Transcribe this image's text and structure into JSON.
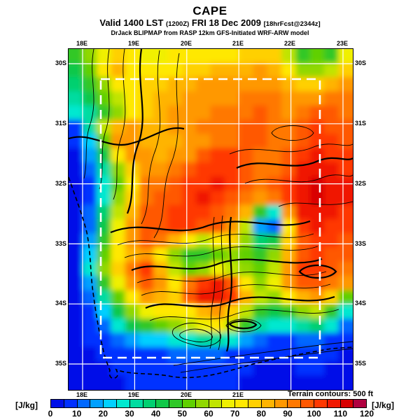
{
  "header": {
    "title": "CAPE",
    "valid_prefix": "Valid 1400 LST",
    "valid_init": "(1200Z)",
    "valid_date": "FRI 18 Dec 2009",
    "valid_fcst": "[18hrFcst@2344z]",
    "model_line": "DrJack BLIPMAP from RASP 12km GFS-Initiated WRF-ARW model"
  },
  "map": {
    "top_lon_labels": [
      "18E",
      "19E",
      "20E",
      "21E",
      "22E",
      "23E"
    ],
    "bottom_lon_labels": [
      "18E",
      "19E",
      "20E",
      "21E"
    ],
    "left_lat_labels": [
      "30S",
      "31S",
      "32S",
      "33S",
      "34S",
      "35S"
    ],
    "right_lat_labels": [
      "30S",
      "31S",
      "32S",
      "33S",
      "34S",
      "35S"
    ],
    "terrain_note": "Terrain contours: 500 ft"
  },
  "colorbar": {
    "units_left": "[J/kg]",
    "units_right": "[J/kg]",
    "tick_labels": [
      "0",
      "10",
      "20",
      "30",
      "40",
      "50",
      "60",
      "70",
      "80",
      "90",
      "100",
      "110",
      "120"
    ]
  },
  "chart_data": {
    "type": "heatmap",
    "title": "CAPE",
    "subtitle": "Valid 1400 LST (1200Z) FRI 18 Dec 2009 [18hrFcst@2344z]",
    "source": "DrJack BLIPMAP from RASP 12km GFS-Initiated WRF-ARW model",
    "units": "J/kg",
    "x_ticks": [
      "18E",
      "19E",
      "20E",
      "21E",
      "22E",
      "23E"
    ],
    "y_ticks": [
      "30S",
      "31S",
      "32S",
      "33S",
      "34S",
      "35S"
    ],
    "lon_range": [
      17.8,
      23.2
    ],
    "lat_range": [
      29.8,
      35.4
    ],
    "annotations": [
      "Terrain contours: 500 ft"
    ],
    "overlays": [
      "white dashed nested-domain box",
      "black terrain contour lines",
      "black dashed coastline",
      "white 1-degree graticule"
    ],
    "colorbar": {
      "min": 0,
      "max": 120,
      "step": 5,
      "tick_step": 10,
      "colors": [
        "#0010e8",
        "#0030ff",
        "#0068ff",
        "#00a0ff",
        "#00d0ff",
        "#00e8d0",
        "#00dca0",
        "#00d070",
        "#10c848",
        "#30c828",
        "#60d000",
        "#90d800",
        "#c0e400",
        "#f0f000",
        "#ffe800",
        "#ffd000",
        "#ffb400",
        "#ff9800",
        "#ff7800",
        "#ff5800",
        "#ff3800",
        "#f01800",
        "#d80000",
        "#b00040"
      ]
    },
    "grid": {
      "cols": 20,
      "rows": 24,
      "comment": "CAPE J/kg estimated on 20x24 lattice, row 0 = north (29.8S), col 0 = west (17.8E)",
      "values": [
        [
          48,
          58,
          68,
          75,
          70,
          68,
          68,
          70,
          70,
          70,
          72,
          72,
          75,
          78,
          78,
          60,
          48,
          50,
          46,
          68
        ],
        [
          42,
          52,
          72,
          80,
          72,
          70,
          70,
          72,
          75,
          78,
          80,
          80,
          82,
          85,
          80,
          72,
          58,
          55,
          62,
          75
        ],
        [
          36,
          45,
          58,
          70,
          72,
          75,
          78,
          80,
          82,
          85,
          85,
          85,
          88,
          88,
          85,
          80,
          76,
          78,
          82,
          85
        ],
        [
          30,
          40,
          50,
          62,
          70,
          76,
          80,
          82,
          85,
          88,
          88,
          88,
          90,
          92,
          90,
          86,
          86,
          88,
          90,
          90
        ],
        [
          26,
          34,
          45,
          58,
          70,
          78,
          82,
          85,
          86,
          88,
          90,
          90,
          92,
          95,
          92,
          88,
          90,
          95,
          95,
          92
        ],
        [
          8,
          30,
          60,
          80,
          85,
          82,
          82,
          85,
          88,
          90,
          90,
          92,
          95,
          95,
          92,
          90,
          95,
          100,
          98,
          95
        ],
        [
          5,
          22,
          50,
          85,
          88,
          82,
          80,
          82,
          85,
          88,
          90,
          92,
          95,
          95,
          92,
          92,
          98,
          102,
          100,
          98
        ],
        [
          4,
          15,
          40,
          70,
          85,
          85,
          82,
          85,
          88,
          95,
          100,
          100,
          95,
          92,
          90,
          95,
          100,
          105,
          102,
          100
        ],
        [
          4,
          10,
          30,
          55,
          75,
          88,
          88,
          90,
          95,
          100,
          102,
          102,
          98,
          92,
          92,
          98,
          105,
          108,
          105,
          102
        ],
        [
          4,
          8,
          25,
          50,
          72,
          90,
          92,
          95,
          100,
          102,
          105,
          100,
          95,
          92,
          95,
          100,
          108,
          110,
          108,
          105
        ],
        [
          4,
          8,
          28,
          55,
          75,
          92,
          95,
          98,
          102,
          105,
          102,
          98,
          92,
          88,
          90,
          100,
          108,
          110,
          108,
          105
        ],
        [
          4,
          10,
          35,
          60,
          80,
          95,
          98,
          100,
          102,
          102,
          98,
          92,
          80,
          45,
          25,
          85,
          105,
          108,
          105,
          102
        ],
        [
          4,
          12,
          40,
          65,
          85,
          95,
          98,
          100,
          100,
          98,
          95,
          88,
          60,
          15,
          12,
          70,
          100,
          105,
          102,
          100
        ],
        [
          4,
          15,
          45,
          70,
          88,
          95,
          90,
          80,
          70,
          60,
          70,
          75,
          55,
          35,
          40,
          75,
          95,
          100,
          100,
          98
        ],
        [
          4,
          20,
          50,
          70,
          80,
          85,
          70,
          55,
          48,
          45,
          50,
          55,
          50,
          45,
          55,
          80,
          95,
          100,
          98,
          95
        ],
        [
          4,
          25,
          55,
          75,
          90,
          100,
          80,
          60,
          50,
          55,
          65,
          60,
          55,
          50,
          60,
          85,
          100,
          102,
          98,
          92
        ],
        [
          4,
          18,
          45,
          65,
          85,
          95,
          85,
          70,
          90,
          100,
          105,
          95,
          70,
          55,
          65,
          85,
          95,
          98,
          92,
          85
        ],
        [
          4,
          10,
          30,
          50,
          70,
          85,
          80,
          75,
          95,
          105,
          108,
          100,
          80,
          60,
          55,
          70,
          80,
          85,
          75,
          50
        ],
        [
          4,
          6,
          20,
          40,
          55,
          65,
          70,
          72,
          70,
          80,
          85,
          75,
          60,
          45,
          40,
          45,
          55,
          60,
          45,
          25
        ],
        [
          4,
          5,
          10,
          25,
          40,
          45,
          50,
          55,
          60,
          65,
          70,
          60,
          45,
          30,
          25,
          28,
          30,
          35,
          25,
          10
        ],
        [
          4,
          5,
          6,
          10,
          18,
          20,
          22,
          25,
          28,
          30,
          32,
          28,
          18,
          10,
          8,
          8,
          10,
          12,
          8,
          6
        ],
        [
          4,
          4,
          5,
          6,
          8,
          8,
          8,
          10,
          10,
          12,
          10,
          8,
          6,
          5,
          5,
          5,
          6,
          6,
          5,
          4
        ],
        [
          4,
          4,
          4,
          5,
          5,
          6,
          6,
          6,
          8,
          8,
          8,
          6,
          5,
          4,
          4,
          4,
          5,
          5,
          4,
          4
        ],
        [
          4,
          4,
          4,
          4,
          5,
          5,
          5,
          6,
          6,
          6,
          6,
          5,
          4,
          4,
          4,
          4,
          4,
          4,
          4,
          4
        ]
      ]
    }
  }
}
